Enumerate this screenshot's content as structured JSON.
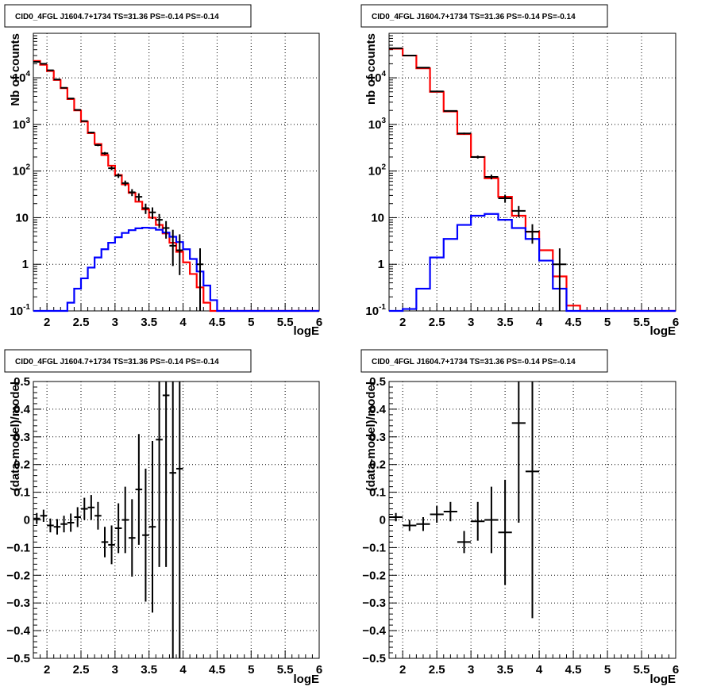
{
  "chart_data": [
    {
      "type": "line",
      "panel": "top-left",
      "title": "CID0_4FGL J1604.7+1734 TS=31.36 PS=-0.14 PS=-0.14",
      "xlabel": "logE",
      "ylabel": "Nb of counts",
      "log_y": true,
      "grid": true,
      "xlim": [
        1.8,
        6.0
      ],
      "ylim": [
        0.1,
        90000
      ],
      "xticks": [
        "2",
        "2.5",
        "3",
        "3.5",
        "4",
        "4.5",
        "5",
        "5.5",
        "6"
      ],
      "yticks": [
        {
          "value": 0.1,
          "label": "10",
          "exp": "-1"
        },
        {
          "value": 1,
          "label": "1",
          "exp": ""
        },
        {
          "value": 10,
          "label": "10",
          "exp": ""
        },
        {
          "value": 100,
          "label": "10",
          "exp": "2"
        },
        {
          "value": 1000,
          "label": "10",
          "exp": "3"
        },
        {
          "value": 10000,
          "label": "10",
          "exp": "4"
        }
      ],
      "bin_edges": [
        1.8,
        1.9,
        2.0,
        2.1,
        2.2,
        2.3,
        2.4,
        2.5,
        2.6,
        2.7,
        2.8,
        2.9,
        3.0,
        3.1,
        3.2,
        3.3,
        3.4,
        3.5,
        3.6,
        3.7,
        3.8,
        3.9,
        4.0,
        4.1,
        4.2,
        4.3,
        4.4,
        4.5,
        4.6,
        4.7,
        4.8,
        4.9,
        5.0,
        5.1,
        5.2,
        5.3,
        5.4,
        5.5,
        5.6,
        5.7,
        5.8,
        5.9,
        6.0
      ],
      "series": [
        {
          "color": "#ff0000",
          "kind": "step",
          "values": [
            23000,
            19000,
            14000,
            9000,
            6000,
            3500,
            2000,
            1150,
            650,
            380,
            220,
            130,
            82,
            52,
            34,
            22,
            15,
            10,
            7,
            4.6,
            2.9,
            1.85,
            1.1,
            0.62,
            0.32,
            0.15,
            0.1,
            0.1,
            0.1,
            0.1,
            0.1,
            0.1,
            0.1,
            0.1,
            0.1,
            0.1,
            0.1,
            0.1,
            0.1,
            0.1,
            0.1,
            0.1
          ]
        },
        {
          "color": "#0000ff",
          "kind": "step",
          "values": [
            0.1,
            0.1,
            0.1,
            0.1,
            0.1,
            0.15,
            0.3,
            0.5,
            0.85,
            1.4,
            2.1,
            2.9,
            3.8,
            4.7,
            5.4,
            5.9,
            6.1,
            6.0,
            5.5,
            4.8,
            3.9,
            3.0,
            2.1,
            1.3,
            0.7,
            0.35,
            0.17,
            0.1,
            0.1,
            0.1,
            0.1,
            0.1,
            0.1,
            0.1,
            0.1,
            0.1,
            0.1,
            0.1,
            0.1,
            0.1,
            0.1,
            0.1
          ]
        }
      ],
      "points": [
        {
          "x": 1.85,
          "y": 22000
        },
        {
          "x": 1.95,
          "y": 20000
        },
        {
          "x": 2.05,
          "y": 14500
        },
        {
          "x": 2.15,
          "y": 9200
        },
        {
          "x": 2.25,
          "y": 6100
        },
        {
          "x": 2.35,
          "y": 3600
        },
        {
          "x": 2.45,
          "y": 2050
        },
        {
          "x": 2.55,
          "y": 1180
        },
        {
          "x": 2.65,
          "y": 670
        },
        {
          "x": 2.75,
          "y": 360
        },
        {
          "x": 2.85,
          "y": 240
        },
        {
          "x": 2.95,
          "y": 115
        },
        {
          "x": 3.05,
          "y": 80
        },
        {
          "x": 3.15,
          "y": 55
        },
        {
          "x": 3.25,
          "y": 35
        },
        {
          "x": 3.35,
          "y": 28
        },
        {
          "x": 3.45,
          "y": 16
        },
        {
          "x": 3.55,
          "y": 13
        },
        {
          "x": 3.65,
          "y": 9
        },
        {
          "x": 3.75,
          "y": 6
        },
        {
          "x": 3.85,
          "y": 2.5
        },
        {
          "x": 3.95,
          "y": 2
        },
        {
          "x": 4.25,
          "y": 1
        }
      ]
    },
    {
      "type": "line",
      "panel": "top-right",
      "title": "CID0_4FGL J1604.7+1734 TS=31.36 PS=-0.14 PS=-0.14",
      "xlabel": "logE",
      "ylabel": "nb of counts",
      "log_y": true,
      "grid": true,
      "xlim": [
        1.8,
        6.0
      ],
      "ylim": [
        0.1,
        90000
      ],
      "xticks": [
        "2",
        "2.5",
        "3",
        "3.5",
        "4",
        "4.5",
        "5",
        "5.5",
        "6"
      ],
      "yticks": [
        {
          "value": 0.1,
          "label": "10",
          "exp": "-1"
        },
        {
          "value": 1,
          "label": "1",
          "exp": ""
        },
        {
          "value": 10,
          "label": "10",
          "exp": ""
        },
        {
          "value": 100,
          "label": "10",
          "exp": "2"
        },
        {
          "value": 1000,
          "label": "10",
          "exp": "3"
        },
        {
          "value": 10000,
          "label": "10",
          "exp": "4"
        }
      ],
      "bin_edges": [
        1.8,
        2.0,
        2.2,
        2.4,
        2.6,
        2.8,
        3.0,
        3.2,
        3.4,
        3.6,
        3.8,
        4.0,
        4.2,
        4.4,
        4.6,
        4.8,
        5.0,
        5.2,
        5.4,
        5.6,
        5.8,
        6.0
      ],
      "series": [
        {
          "color": "#ff0000",
          "kind": "step",
          "values": [
            42000,
            30000,
            16000,
            5000,
            1900,
            620,
            200,
            70,
            28,
            11,
            5,
            2,
            0.55,
            0.13,
            0.1,
            0.1,
            0.1,
            0.1,
            0.1,
            0.1,
            0.1
          ]
        },
        {
          "color": "#0000ff",
          "kind": "step",
          "values": [
            0.1,
            0.11,
            0.3,
            1.4,
            3.5,
            7,
            11,
            12,
            9,
            6,
            3.5,
            1.2,
            0.3,
            0.1,
            0.1,
            0.1,
            0.1,
            0.1,
            0.1,
            0.1,
            0.1
          ]
        }
      ],
      "points": [
        {
          "x": 1.9,
          "y": 43000
        },
        {
          "x": 2.1,
          "y": 30000
        },
        {
          "x": 2.3,
          "y": 16500
        },
        {
          "x": 2.5,
          "y": 5100
        },
        {
          "x": 2.7,
          "y": 1950
        },
        {
          "x": 2.9,
          "y": 640
        },
        {
          "x": 3.1,
          "y": 200
        },
        {
          "x": 3.3,
          "y": 75
        },
        {
          "x": 3.5,
          "y": 26
        },
        {
          "x": 3.7,
          "y": 14
        },
        {
          "x": 3.9,
          "y": 5
        },
        {
          "x": 4.3,
          "y": 1
        }
      ]
    },
    {
      "type": "scatter",
      "panel": "bottom-left",
      "title": "CID0_4FGL J1604.7+1734 TS=31.36 PS=-0.14 PS=-0.14",
      "xlabel": "logE",
      "ylabel": "(data-model)/model",
      "log_y": false,
      "grid": true,
      "xlim": [
        1.8,
        6.0
      ],
      "ylim": [
        -0.5,
        0.5
      ],
      "xticks": [
        "2",
        "2.5",
        "3",
        "3.5",
        "4",
        "4.5",
        "5",
        "5.5",
        "6"
      ],
      "yticks": [
        "0.5",
        "0.4",
        "0.3",
        "0.2",
        "0.1",
        "0",
        "-0.1",
        "-0.2",
        "-0.3",
        "-0.4",
        "-0.5"
      ],
      "points": [
        {
          "x": 1.85,
          "y": 0.005,
          "err": 0.02
        },
        {
          "x": 1.95,
          "y": 0.015,
          "err": 0.022
        },
        {
          "x": 2.05,
          "y": -0.02,
          "err": 0.025
        },
        {
          "x": 2.15,
          "y": -0.025,
          "err": 0.028
        },
        {
          "x": 2.25,
          "y": -0.015,
          "err": 0.03
        },
        {
          "x": 2.35,
          "y": -0.01,
          "err": 0.033
        },
        {
          "x": 2.45,
          "y": 0.01,
          "err": 0.036
        },
        {
          "x": 2.55,
          "y": 0.04,
          "err": 0.04
        },
        {
          "x": 2.65,
          "y": 0.045,
          "err": 0.045
        },
        {
          "x": 2.75,
          "y": 0.015,
          "err": 0.05
        },
        {
          "x": 2.85,
          "y": -0.08,
          "err": 0.055
        },
        {
          "x": 2.95,
          "y": -0.09,
          "err": 0.07
        },
        {
          "x": 3.05,
          "y": -0.03,
          "err": 0.09
        },
        {
          "x": 3.15,
          "y": 0.0,
          "err": 0.12
        },
        {
          "x": 3.25,
          "y": -0.065,
          "err": 0.14
        },
        {
          "x": 3.35,
          "y": 0.11,
          "err": 0.2
        },
        {
          "x": 3.45,
          "y": -0.055,
          "err": 0.24
        },
        {
          "x": 3.55,
          "y": -0.025,
          "err": 0.31
        },
        {
          "x": 3.65,
          "y": 0.29,
          "err": 0.46
        },
        {
          "x": 3.75,
          "y": 0.45,
          "err": 0.62
        },
        {
          "x": 3.85,
          "y": 0.17,
          "err": 0.75
        },
        {
          "x": 3.95,
          "y": 0.185,
          "err": 0.8
        }
      ]
    },
    {
      "type": "scatter",
      "panel": "bottom-right",
      "title": "CID0_4FGL J1604.7+1734 TS=31.36 PS=-0.14 PS=-0.14",
      "xlabel": "logE",
      "ylabel": "(data-model)/model",
      "log_y": false,
      "grid": true,
      "xlim": [
        1.8,
        6.0
      ],
      "ylim": [
        -0.5,
        0.5
      ],
      "xticks": [
        "2",
        "2.5",
        "3",
        "3.5",
        "4",
        "4.5",
        "5",
        "5.5",
        "6"
      ],
      "yticks": [
        "0.5",
        "0.4",
        "0.3",
        "0.2",
        "0.1",
        "0",
        "-0.1",
        "-0.2",
        "-0.3",
        "-0.4",
        "-0.5"
      ],
      "points": [
        {
          "x": 1.9,
          "y": 0.01,
          "err": 0.015
        },
        {
          "x": 2.1,
          "y": -0.02,
          "err": 0.02
        },
        {
          "x": 2.3,
          "y": -0.015,
          "err": 0.025
        },
        {
          "x": 2.5,
          "y": 0.02,
          "err": 0.03
        },
        {
          "x": 2.7,
          "y": 0.03,
          "err": 0.035
        },
        {
          "x": 2.9,
          "y": -0.08,
          "err": 0.04
        },
        {
          "x": 3.1,
          "y": -0.005,
          "err": 0.07
        },
        {
          "x": 3.3,
          "y": 0.0,
          "err": 0.12
        },
        {
          "x": 3.5,
          "y": -0.045,
          "err": 0.19
        },
        {
          "x": 3.7,
          "y": 0.35,
          "err": 0.36
        },
        {
          "x": 3.9,
          "y": 0.175,
          "err": 0.53
        }
      ]
    }
  ]
}
